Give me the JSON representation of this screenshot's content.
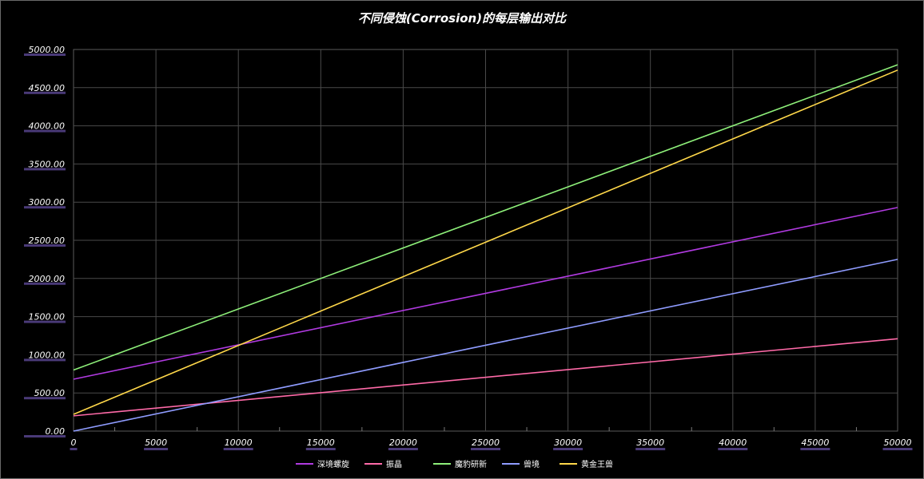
{
  "chart_data": {
    "type": "line",
    "title": "不同侵蚀(Corrosion)的每层输出对比",
    "xlabel": "",
    "ylabel": "",
    "xlim": [
      0,
      50000
    ],
    "ylim": [
      0,
      5000
    ],
    "x_ticks": [
      "0",
      "5000",
      "10000",
      "15000",
      "20000",
      "25000",
      "30000",
      "35000",
      "40000",
      "45000",
      "50000"
    ],
    "y_ticks": [
      "0.00",
      "500.00",
      "1000.00",
      "1500.00",
      "2000.00",
      "2500.00",
      "3000.00",
      "3500.00",
      "4000.00",
      "4500.00",
      "5000.00"
    ],
    "grid": true,
    "legend_position": "bottom-center",
    "x": [
      0,
      50000
    ],
    "series": [
      {
        "name": "深境螺旋",
        "color": "#b03ae0",
        "values": [
          680,
          2930
        ]
      },
      {
        "name": "振晶",
        "color": "#ff6aa8",
        "values": [
          200,
          1210
        ]
      },
      {
        "name": "魔豹研新",
        "color": "#8ef07a",
        "values": [
          800,
          4800
        ]
      },
      {
        "name": "兽境",
        "color": "#8f9cff",
        "values": [
          0,
          2250
        ]
      },
      {
        "name": "黄金王兽",
        "color": "#ffd84a",
        "values": [
          220,
          4730
        ]
      }
    ]
  }
}
